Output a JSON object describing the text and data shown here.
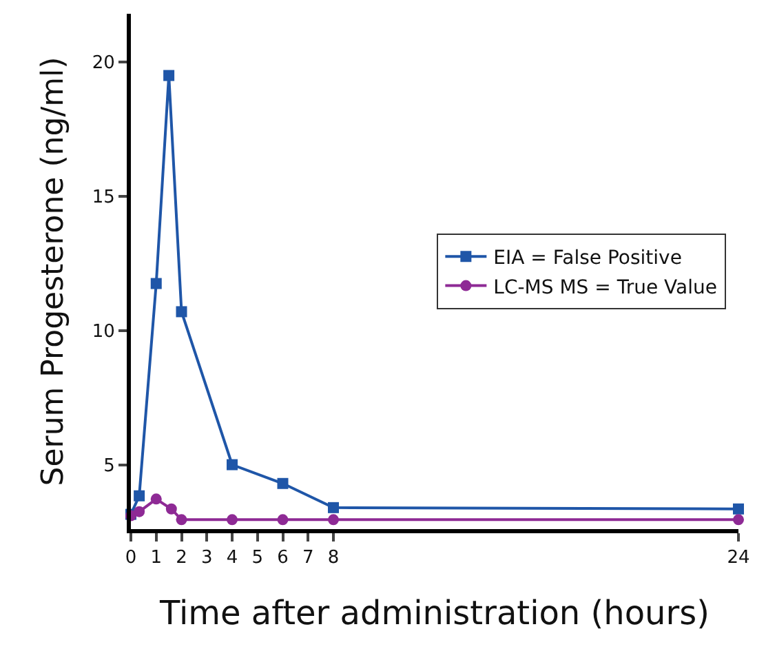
{
  "chart_data": {
    "type": "line",
    "xlabel": "Time after administration (hours)",
    "ylabel": "Serum Progesterone (ng/ml)",
    "xlim": [
      0,
      24
    ],
    "xticks": [
      0,
      1,
      2,
      3,
      4,
      5,
      6,
      7,
      8,
      24
    ],
    "ylim": [
      2.6,
      21.8
    ],
    "yticks": [
      5,
      10,
      15,
      20
    ],
    "grid": false,
    "legend": "right",
    "line_style": "solid",
    "series": [
      {
        "name": "EIA = False Positive",
        "color": "#1f56a8",
        "marker": "square",
        "x": [
          0,
          0.33,
          1,
          1.5,
          2,
          4,
          6,
          8,
          24
        ],
        "values": [
          3.15,
          3.84,
          11.75,
          19.5,
          10.7,
          5.0,
          4.3,
          3.4,
          3.35
        ]
      },
      {
        "name": "LC-MS MS = True Value",
        "color": "#8e2a95",
        "marker": "circle",
        "x": [
          0,
          0.33,
          1,
          1.6,
          2,
          4,
          6,
          8,
          24
        ],
        "values": [
          3.1,
          3.25,
          3.72,
          3.35,
          2.95,
          2.95,
          2.95,
          2.95,
          2.95
        ]
      }
    ]
  }
}
